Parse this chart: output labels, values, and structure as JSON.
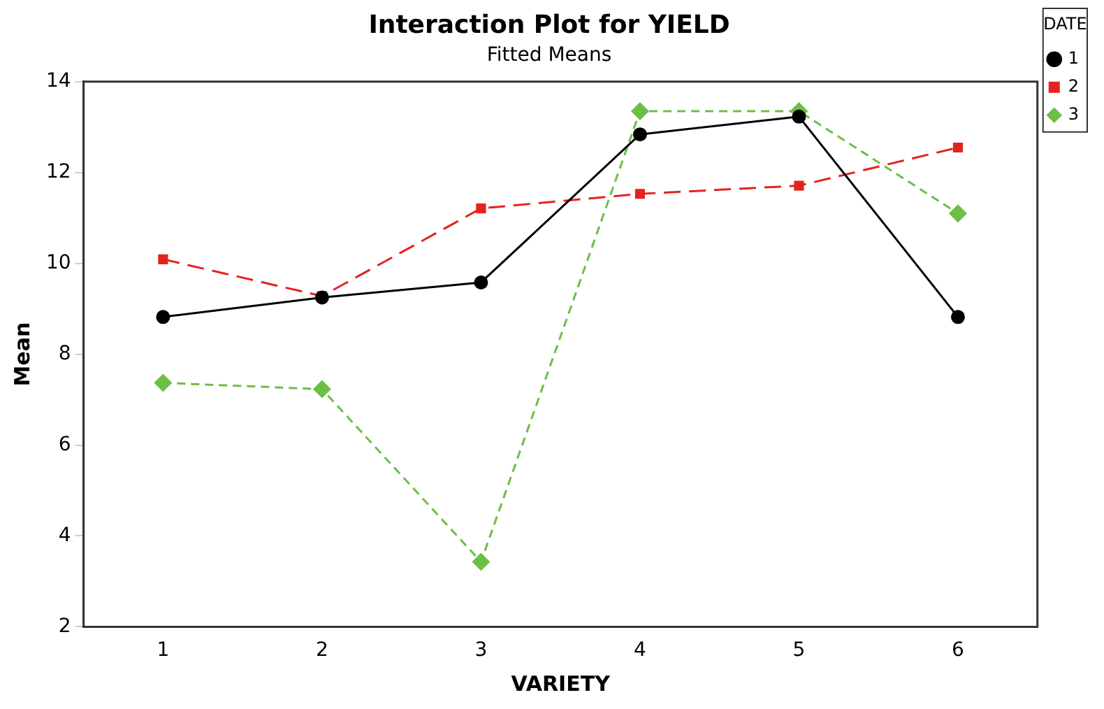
{
  "chart_data": {
    "type": "line",
    "title": "Interaction Plot for YIELD",
    "subtitle": "Fitted Means",
    "xlabel": "VARIETY",
    "ylabel": "Mean",
    "legend_title": "DATE",
    "categories": [
      "1",
      "2",
      "3",
      "4",
      "5",
      "6"
    ],
    "series": [
      {
        "name": "1",
        "color": "#000000",
        "marker": "circle",
        "line_style": "solid",
        "values": [
          8.82,
          9.25,
          9.58,
          12.84,
          13.23,
          8.82
        ]
      },
      {
        "name": "2",
        "color": "#e3231f",
        "marker": "square",
        "line_style": "dashed",
        "values": [
          10.09,
          9.28,
          11.21,
          11.53,
          11.71,
          12.55
        ]
      },
      {
        "name": "3",
        "color": "#6cbf45",
        "marker": "diamond",
        "line_style": "dotted",
        "values": [
          7.37,
          7.23,
          3.43,
          13.35,
          13.35,
          11.1
        ]
      }
    ],
    "ylim": [
      2,
      14
    ],
    "yticks": [
      2,
      4,
      6,
      8,
      10,
      12,
      14
    ],
    "grid": false,
    "legend": "top right"
  }
}
